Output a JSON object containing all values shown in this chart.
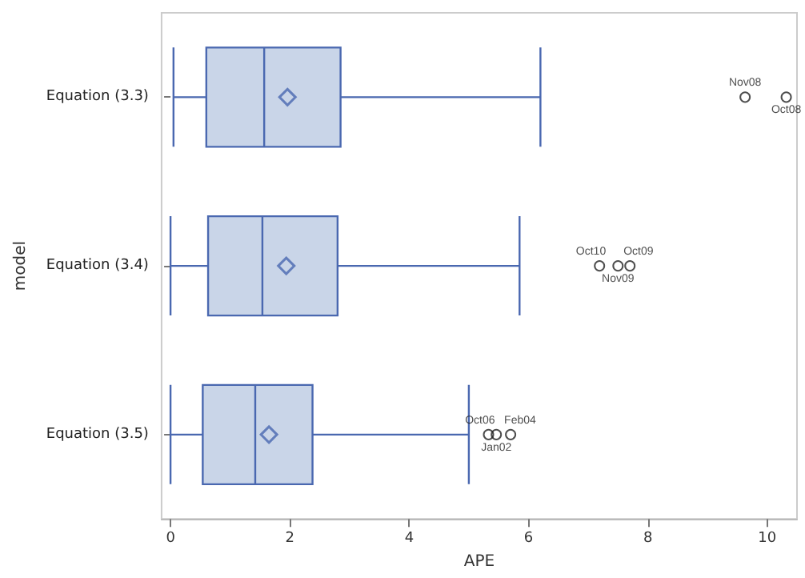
{
  "chart_data": {
    "type": "box",
    "xlabel": "APE",
    "ylabel": "model",
    "orientation": "horizontal",
    "categories": [
      "Equation (3.3)",
      "Equation (3.4)",
      "Equation (3.5)"
    ],
    "color": "#c9d5e8",
    "boxes": [
      {
        "low": 0.05,
        "q1": 0.6,
        "median": 1.57,
        "q3": 2.85,
        "high": 6.2,
        "mean": 1.96,
        "outliers": [
          9.63,
          10.32
        ]
      },
      {
        "low": 0.0,
        "q1": 0.63,
        "median": 1.54,
        "q3": 2.8,
        "high": 5.85,
        "mean": 1.94,
        "outliers": [
          7.19,
          7.5,
          7.7
        ]
      },
      {
        "low": 0.0,
        "q1": 0.54,
        "median": 1.42,
        "q3": 2.38,
        "high": 5.0,
        "mean": 1.65,
        "outliers": [
          5.33,
          5.46,
          5.7
        ]
      }
    ],
    "xlim": [
      -0.15,
      10.5
    ],
    "xticks": [
      0,
      2,
      4,
      6,
      8,
      10
    ],
    "grid": false,
    "annotations": [
      "Nov08",
      "Oct08",
      "Oct10",
      "Nov09",
      "Oct09",
      "Oct06",
      "Jan02",
      "Feb04"
    ]
  }
}
